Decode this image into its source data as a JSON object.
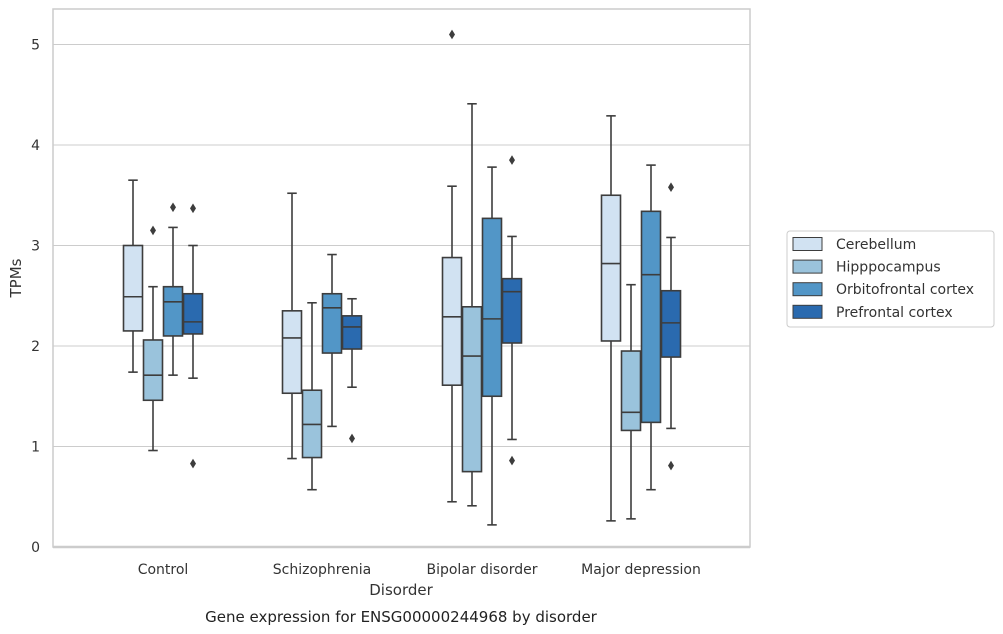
{
  "chart_data": {
    "type": "box",
    "caption": "Gene expression for ENSG00000244968 by disorder",
    "xlabel": "Disorder",
    "ylabel": "TPMs",
    "ylim": [
      0,
      5.35
    ],
    "yticks": [
      0,
      1,
      2,
      3,
      4,
      5
    ],
    "grid": "horizontal",
    "legend_position": "outside-right",
    "categories": [
      "Control",
      "Schizophrenia",
      "Bipolar disorder",
      "Major depression"
    ],
    "series": [
      {
        "name": "Cerebellum",
        "color": "#d1e2f2",
        "boxes": [
          {
            "whislo": 1.74,
            "q1": 2.15,
            "med": 2.49,
            "q3": 3.0,
            "whishi": 3.65,
            "fliers": []
          },
          {
            "whislo": 0.88,
            "q1": 1.53,
            "med": 2.08,
            "q3": 2.35,
            "whishi": 3.52,
            "fliers": []
          },
          {
            "whislo": 0.45,
            "q1": 1.61,
            "med": 2.29,
            "q3": 2.88,
            "whishi": 3.59,
            "fliers": [
              5.1
            ]
          },
          {
            "whislo": 0.26,
            "q1": 2.05,
            "med": 2.82,
            "q3": 3.5,
            "whishi": 4.29,
            "fliers": []
          }
        ]
      },
      {
        "name": "Hipppocampus",
        "color": "#9ac3dc",
        "boxes": [
          {
            "whislo": 0.96,
            "q1": 1.46,
            "med": 1.71,
            "q3": 2.06,
            "whishi": 2.59,
            "fliers": [
              3.15
            ]
          },
          {
            "whislo": 0.57,
            "q1": 0.89,
            "med": 1.22,
            "q3": 1.56,
            "whishi": 2.43,
            "fliers": []
          },
          {
            "whislo": 0.41,
            "q1": 0.75,
            "med": 1.9,
            "q3": 2.39,
            "whishi": 4.41,
            "fliers": []
          },
          {
            "whislo": 0.28,
            "q1": 1.16,
            "med": 1.34,
            "q3": 1.95,
            "whishi": 2.61,
            "fliers": []
          }
        ]
      },
      {
        "name": "Orbitofrontal cortex",
        "color": "#5296c7",
        "boxes": [
          {
            "whislo": 1.71,
            "q1": 2.1,
            "med": 2.44,
            "q3": 2.59,
            "whishi": 3.18,
            "fliers": [
              3.38
            ]
          },
          {
            "whislo": 1.2,
            "q1": 1.93,
            "med": 2.38,
            "q3": 2.52,
            "whishi": 2.91,
            "fliers": []
          },
          {
            "whislo": 0.22,
            "q1": 1.5,
            "med": 2.27,
            "q3": 3.27,
            "whishi": 3.78,
            "fliers": []
          },
          {
            "whislo": 0.57,
            "q1": 1.24,
            "med": 2.71,
            "q3": 3.34,
            "whishi": 3.8,
            "fliers": []
          }
        ]
      },
      {
        "name": "Prefrontal cortex",
        "color": "#2a6aaf",
        "boxes": [
          {
            "whislo": 1.68,
            "q1": 2.12,
            "med": 2.24,
            "q3": 2.52,
            "whishi": 3.0,
            "fliers": [
              3.37,
              0.83
            ]
          },
          {
            "whislo": 1.59,
            "q1": 1.97,
            "med": 2.19,
            "q3": 2.3,
            "whishi": 2.47,
            "fliers": [
              1.08
            ]
          },
          {
            "whislo": 1.07,
            "q1": 2.03,
            "med": 2.54,
            "q3": 2.67,
            "whishi": 3.09,
            "fliers": [
              3.85,
              0.86
            ]
          },
          {
            "whislo": 1.18,
            "q1": 1.89,
            "med": 2.23,
            "q3": 2.55,
            "whishi": 3.08,
            "fliers": [
              3.58,
              0.81
            ]
          }
        ]
      }
    ]
  }
}
